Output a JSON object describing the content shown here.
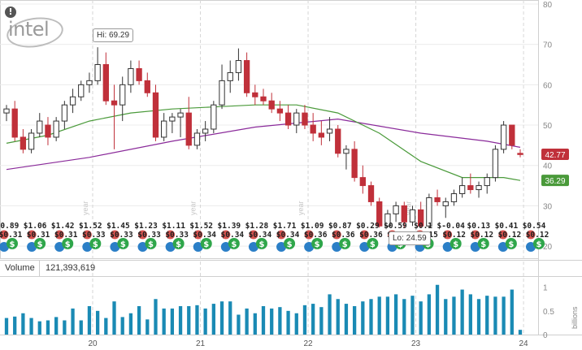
{
  "logo_text": "intel",
  "warning_icon": "!",
  "volume_label": "Volume",
  "volume_value": "121,393,619",
  "hi_label": "Hi: 69.29",
  "lo_label": "Lo: 24.59",
  "colors": {
    "up": "#ffffff",
    "down": "#c0303a",
    "sma_short": "#4a9a3a",
    "sma_long": "#8a2a9a",
    "volume": "#1a8ab4",
    "dividend": "#2fa64a",
    "earnings": "#d9534f",
    "split": "#2b7fc7"
  },
  "chart_data": {
    "type": "candlestick",
    "title": "",
    "x_ticks": [
      "20",
      "21",
      "22",
      "23",
      "24"
    ],
    "year_markers": [
      "year",
      "year",
      "year",
      "year"
    ],
    "y_ticks": [
      20,
      30,
      40,
      50,
      60,
      70,
      80
    ],
    "ylim": [
      17,
      81
    ],
    "volume_ticks": [
      "0",
      "0.5",
      "1"
    ],
    "volume_unit": "billions",
    "volume_ylim": [
      0,
      1.2
    ],
    "last_price": "42.77",
    "sma_last": "36.29",
    "dividends_high": [
      "$0.89",
      "$1.06",
      "$1.42",
      "$1.52",
      "$1.45",
      "$1.23",
      "$1.11",
      "$1.52",
      "$1.39",
      "$1.28",
      "$1.71",
      "$1.09",
      "$0.87",
      "$0.29",
      "$0.59",
      "$0.1",
      "$-0.04",
      "$0.13",
      "$0.41",
      "$0.54"
    ],
    "dividends_low": [
      "$0.31",
      "$0.31",
      "$0.31",
      "$0.33",
      "$0.33",
      "$0.33",
      "$0.33",
      "$0.34",
      "$0.34",
      "$0.34",
      "$0.34",
      "$0.36",
      "$0.36",
      "$0.36",
      "$0.36",
      "$0.15",
      "$0.12",
      "$0.12",
      "$0.12",
      "$0.12"
    ],
    "candles": [
      {
        "o": 53,
        "h": 55,
        "l": 51,
        "c": 54
      },
      {
        "o": 54,
        "h": 56,
        "l": 46,
        "c": 47
      },
      {
        "o": 47,
        "h": 49,
        "l": 43,
        "c": 44
      },
      {
        "o": 44,
        "h": 49,
        "l": 43,
        "c": 48
      },
      {
        "o": 48,
        "h": 53,
        "l": 47,
        "c": 51
      },
      {
        "o": 50,
        "h": 52,
        "l": 45,
        "c": 47
      },
      {
        "o": 47,
        "h": 52,
        "l": 46,
        "c": 51
      },
      {
        "o": 51,
        "h": 56,
        "l": 49,
        "c": 55
      },
      {
        "o": 55,
        "h": 59,
        "l": 53,
        "c": 57
      },
      {
        "o": 57,
        "h": 61,
        "l": 56,
        "c": 60
      },
      {
        "o": 60,
        "h": 63,
        "l": 58,
        "c": 61
      },
      {
        "o": 61,
        "h": 69.29,
        "l": 60,
        "c": 65
      },
      {
        "o": 65,
        "h": 68,
        "l": 55,
        "c": 56
      },
      {
        "o": 56,
        "h": 60,
        "l": 44,
        "c": 55
      },
      {
        "o": 55,
        "h": 62,
        "l": 51,
        "c": 60
      },
      {
        "o": 60,
        "h": 66,
        "l": 58,
        "c": 64
      },
      {
        "o": 64,
        "h": 66,
        "l": 60,
        "c": 61
      },
      {
        "o": 61,
        "h": 63,
        "l": 57,
        "c": 58
      },
      {
        "o": 58,
        "h": 60,
        "l": 46,
        "c": 47
      },
      {
        "o": 47,
        "h": 53,
        "l": 46,
        "c": 51
      },
      {
        "o": 51,
        "h": 53,
        "l": 48,
        "c": 52
      },
      {
        "o": 52,
        "h": 54,
        "l": 47,
        "c": 53
      },
      {
        "o": 53,
        "h": 57,
        "l": 44,
        "c": 45
      },
      {
        "o": 45,
        "h": 49,
        "l": 44,
        "c": 48
      },
      {
        "o": 48,
        "h": 51,
        "l": 46,
        "c": 49
      },
      {
        "o": 49,
        "h": 56,
        "l": 48,
        "c": 55
      },
      {
        "o": 55,
        "h": 65,
        "l": 54,
        "c": 61
      },
      {
        "o": 61,
        "h": 66,
        "l": 58,
        "c": 63
      },
      {
        "o": 63,
        "h": 69,
        "l": 61,
        "c": 66
      },
      {
        "o": 66,
        "h": 68,
        "l": 57,
        "c": 58
      },
      {
        "o": 58,
        "h": 60,
        "l": 55,
        "c": 57
      },
      {
        "o": 57,
        "h": 59,
        "l": 55,
        "c": 56
      },
      {
        "o": 56,
        "h": 58,
        "l": 53,
        "c": 54
      },
      {
        "o": 54,
        "h": 56,
        "l": 51,
        "c": 53
      },
      {
        "o": 53,
        "h": 55,
        "l": 49,
        "c": 50
      },
      {
        "o": 50,
        "h": 54,
        "l": 48,
        "c": 53
      },
      {
        "o": 53,
        "h": 55,
        "l": 49,
        "c": 50
      },
      {
        "o": 50,
        "h": 53,
        "l": 46,
        "c": 48
      },
      {
        "o": 48,
        "h": 51,
        "l": 45,
        "c": 47
      },
      {
        "o": 48,
        "h": 52,
        "l": 46,
        "c": 49
      },
      {
        "o": 49,
        "h": 50,
        "l": 42,
        "c": 43
      },
      {
        "o": 43,
        "h": 45,
        "l": 39,
        "c": 44
      },
      {
        "o": 44,
        "h": 46,
        "l": 36,
        "c": 37
      },
      {
        "o": 37,
        "h": 40,
        "l": 33,
        "c": 35
      },
      {
        "o": 35,
        "h": 36,
        "l": 30,
        "c": 31
      },
      {
        "o": 31,
        "h": 32,
        "l": 24.59,
        "c": 25
      },
      {
        "o": 25,
        "h": 29,
        "l": 24.59,
        "c": 28
      },
      {
        "o": 28,
        "h": 31,
        "l": 26,
        "c": 30
      },
      {
        "o": 30,
        "h": 31,
        "l": 24.59,
        "c": 26
      },
      {
        "o": 26,
        "h": 30,
        "l": 25,
        "c": 29
      },
      {
        "o": 29,
        "h": 31,
        "l": 24.59,
        "c": 25
      },
      {
        "o": 25,
        "h": 33,
        "l": 24.59,
        "c": 32
      },
      {
        "o": 32,
        "h": 34,
        "l": 30,
        "c": 31
      },
      {
        "o": 30,
        "h": 32,
        "l": 27,
        "c": 31
      },
      {
        "o": 31,
        "h": 34,
        "l": 30,
        "c": 33
      },
      {
        "o": 33,
        "h": 37,
        "l": 32,
        "c": 35
      },
      {
        "o": 35,
        "h": 38,
        "l": 33,
        "c": 34
      },
      {
        "o": 34,
        "h": 36,
        "l": 32,
        "c": 35
      },
      {
        "o": 35,
        "h": 38,
        "l": 33,
        "c": 37
      },
      {
        "o": 37,
        "h": 45,
        "l": 36,
        "c": 44
      },
      {
        "o": 44,
        "h": 51,
        "l": 43,
        "c": 50
      },
      {
        "o": 50,
        "h": 50,
        "l": 44,
        "c": 45
      },
      {
        "o": 43,
        "h": 44,
        "l": 42,
        "c": 42.77
      }
    ],
    "sma_short": [
      {
        "x": 0,
        "y": 45.5
      },
      {
        "x": 5,
        "y": 47.5
      },
      {
        "x": 10,
        "y": 51
      },
      {
        "x": 15,
        "y": 53
      },
      {
        "x": 20,
        "y": 54
      },
      {
        "x": 25,
        "y": 54.5
      },
      {
        "x": 30,
        "y": 55
      },
      {
        "x": 35,
        "y": 55
      },
      {
        "x": 40,
        "y": 53
      },
      {
        "x": 45,
        "y": 48
      },
      {
        "x": 50,
        "y": 41
      },
      {
        "x": 55,
        "y": 37
      },
      {
        "x": 60,
        "y": 37
      },
      {
        "x": 62,
        "y": 36.29
      }
    ],
    "sma_long": [
      {
        "x": 0,
        "y": 39
      },
      {
        "x": 10,
        "y": 42
      },
      {
        "x": 20,
        "y": 46
      },
      {
        "x": 30,
        "y": 49.5
      },
      {
        "x": 40,
        "y": 51.5
      },
      {
        "x": 50,
        "y": 48
      },
      {
        "x": 58,
        "y": 46
      },
      {
        "x": 62,
        "y": 44.5
      }
    ],
    "volume": [
      0.35,
      0.38,
      0.45,
      0.35,
      0.28,
      0.3,
      0.37,
      0.3,
      0.55,
      0.3,
      0.6,
      0.5,
      0.35,
      0.7,
      0.37,
      0.45,
      0.6,
      0.32,
      0.75,
      0.55,
      0.55,
      0.6,
      0.6,
      0.62,
      0.55,
      0.65,
      0.7,
      0.7,
      0.42,
      0.55,
      0.45,
      0.6,
      0.55,
      0.58,
      0.5,
      0.45,
      0.62,
      0.65,
      0.58,
      0.85,
      0.75,
      0.65,
      0.6,
      0.7,
      0.75,
      0.8,
      0.8,
      0.85,
      0.75,
      0.82,
      0.7,
      0.85,
      1.05,
      0.75,
      0.8,
      0.95,
      0.85,
      0.75,
      0.82,
      0.8,
      0.8,
      0.95,
      0.1
    ]
  }
}
